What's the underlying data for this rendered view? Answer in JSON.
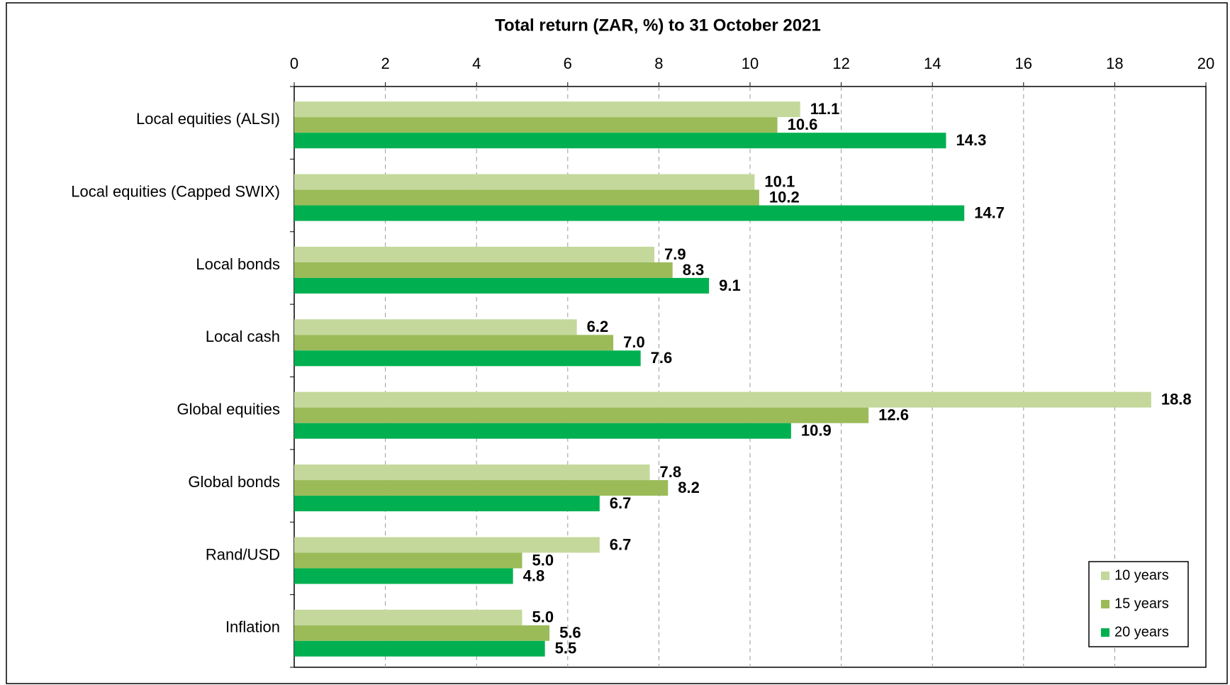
{
  "chart_data": {
    "type": "bar",
    "orientation": "horizontal",
    "title": "Total return (ZAR, %) to 31 October 2021",
    "categories": [
      "Local equities (ALSI)",
      "Local equities (Capped SWIX)",
      "Local bonds",
      "Local cash",
      "Global equities",
      "Global bonds",
      "Rand/USD",
      "Inflation"
    ],
    "series": [
      {
        "name": "10 years",
        "color": "#c4d89b",
        "values": [
          11.1,
          10.1,
          7.9,
          6.2,
          18.8,
          7.8,
          6.7,
          5.0
        ],
        "value_labels": [
          "11.1",
          "10.1",
          "7.9",
          "6.2",
          "18.8",
          "7.8",
          "6.7",
          "5.0"
        ]
      },
      {
        "name": "15 years",
        "color": "#9bbb59",
        "values": [
          10.6,
          10.2,
          8.3,
          7.0,
          12.6,
          8.2,
          5.0,
          5.6
        ],
        "value_labels": [
          "10.6",
          "10.2",
          "8.3",
          "7.0",
          "12.6",
          "8.2",
          "5.0",
          "5.6"
        ]
      },
      {
        "name": "20 years",
        "color": "#00b050",
        "values": [
          14.3,
          14.7,
          9.1,
          7.6,
          10.9,
          6.7,
          4.8,
          5.5
        ],
        "value_labels": [
          "14.3",
          "14.7",
          "9.1",
          "7.6",
          "10.9",
          "6.7",
          "4.8",
          "5.5"
        ]
      }
    ],
    "xlim": [
      0,
      20
    ],
    "xticks": [
      0,
      2,
      4,
      6,
      8,
      10,
      12,
      14,
      16,
      18,
      20
    ],
    "grid": true,
    "legend_position": "lower right"
  }
}
